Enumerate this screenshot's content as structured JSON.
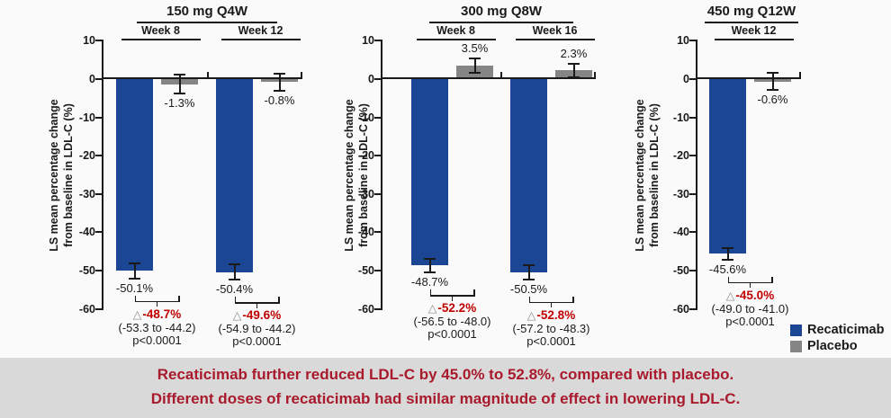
{
  "colors": {
    "recaticimab": "#1B4693",
    "placebo": "#858585",
    "delta_red": "#C00000",
    "banner_red": "#A81A2C",
    "banner_bg": "#D9D9D9",
    "axis_black": "#1A1A1A",
    "page_bg": "#FAFAFA"
  },
  "misc": {
    "delta_symbol": "△"
  },
  "legend": [
    {
      "name": "Recaticimab",
      "color_key": "recaticimab"
    },
    {
      "name": "Placebo",
      "color_key": "placebo"
    }
  ],
  "banner": {
    "line1": "Recaticimab further reduced LDL-C by 45.0% to 52.8%, compared with placebo.",
    "line2": "Different doses of recaticimab had similar magnitude of effect in lowering LDL-C."
  },
  "chart_data": {
    "type": "bar",
    "ylabel": "LS mean percentage change from baseline in LDL-C (%)",
    "ylabel_line1": "LS mean percentage change",
    "ylabel_line2": "from baseline in LDL-C (%)",
    "ylim": [
      -60,
      10
    ],
    "yticks": [
      10,
      0,
      -10,
      -20,
      -30,
      -40,
      -50,
      -60
    ],
    "grid": false,
    "legend_position": "bottom-right",
    "series_names": [
      "Recaticimab",
      "Placebo"
    ],
    "panels": [
      {
        "dose": "150 mg Q4W",
        "groups": [
          {
            "week": "Week 8",
            "recaticimab": {
              "value": -50.1,
              "label": "-50.1%",
              "err": 2.0
            },
            "placebo": {
              "value": -1.3,
              "label": "-1.3%",
              "err": 2.5
            },
            "delta": {
              "label": "-48.7%",
              "ci": "(-53.3 to -44.2)",
              "p": "p<0.0001"
            }
          },
          {
            "week": "Week 12",
            "recaticimab": {
              "value": -50.4,
              "label": "-50.4%",
              "err": 2.0
            },
            "placebo": {
              "value": -0.8,
              "label": "-0.8%",
              "err": 2.3
            },
            "delta": {
              "label": "-49.6%",
              "ci": "(-54.9 to -44.2)",
              "p": "p<0.0001"
            }
          }
        ]
      },
      {
        "dose": "300 mg Q8W",
        "groups": [
          {
            "week": "Week 8",
            "recaticimab": {
              "value": -48.7,
              "label": "-48.7%",
              "err": 1.8
            },
            "placebo": {
              "value": 3.5,
              "label": "3.5%",
              "err": 1.8
            },
            "delta": {
              "label": "-52.2%",
              "ci": "(-56.5 to -48.0)",
              "p": "p<0.0001"
            }
          },
          {
            "week": "Week 16",
            "recaticimab": {
              "value": -50.5,
              "label": "-50.5%",
              "err": 1.8
            },
            "placebo": {
              "value": 2.3,
              "label": "2.3%",
              "err": 1.8
            },
            "delta": {
              "label": "-52.8%",
              "ci": "(-57.2 to -48.3)",
              "p": "p<0.0001"
            }
          }
        ]
      },
      {
        "dose": "450 mg Q12W",
        "groups": [
          {
            "week": "Week 12",
            "recaticimab": {
              "value": -45.6,
              "label": "-45.6%",
              "err": 1.5
            },
            "placebo": {
              "value": -0.6,
              "label": "-0.6%",
              "err": 2.3
            },
            "delta": {
              "label": "-45.0%",
              "ci": "(-49.0 to -41.0)",
              "p": "p<0.0001"
            }
          }
        ]
      }
    ]
  }
}
